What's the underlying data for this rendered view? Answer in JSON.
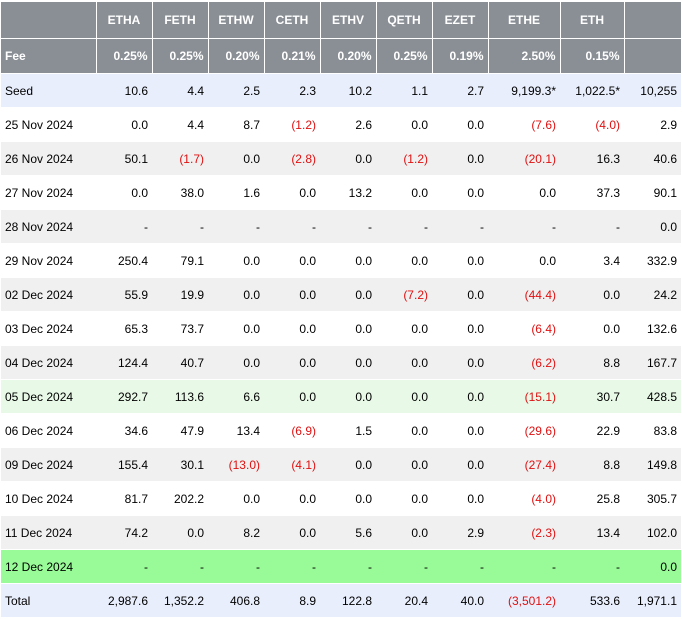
{
  "columns": [
    "",
    "ETHA",
    "FETH",
    "ETHW",
    "CETH",
    "ETHV",
    "QETH",
    "EZET",
    "ETHE",
    "ETH",
    ""
  ],
  "fee": [
    "Fee",
    "0.25%",
    "0.25%",
    "0.20%",
    "0.21%",
    "0.20%",
    "0.25%",
    "0.19%",
    "2.50%",
    "0.15%",
    ""
  ],
  "rows": [
    {
      "style": "seed",
      "cells": [
        "Seed",
        "10.6",
        "4.4",
        "2.5",
        "2.3",
        "10.2",
        "1.1",
        "2.7",
        "9,199.3*",
        "1,022.5*",
        "10,255"
      ]
    },
    {
      "style": "white",
      "cells": [
        "25 Nov 2024",
        "0.0",
        "4.4",
        "8.7",
        "(1.2)",
        "2.6",
        "0.0",
        "0.0",
        "(7.6)",
        "(4.0)",
        "2.9"
      ]
    },
    {
      "style": "grey",
      "cells": [
        "26 Nov 2024",
        "50.1",
        "(1.7)",
        "0.0",
        "(2.8)",
        "0.0",
        "(1.2)",
        "0.0",
        "(20.1)",
        "16.3",
        "40.6"
      ]
    },
    {
      "style": "white",
      "cells": [
        "27 Nov 2024",
        "0.0",
        "38.0",
        "1.6",
        "0.0",
        "13.2",
        "0.0",
        "0.0",
        "0.0",
        "37.3",
        "90.1"
      ]
    },
    {
      "style": "grey",
      "cells": [
        "28 Nov 2024",
        "-",
        "-",
        "-",
        "-",
        "-",
        "-",
        "-",
        "-",
        "-",
        "0.0"
      ]
    },
    {
      "style": "white",
      "cells": [
        "29 Nov 2024",
        "250.4",
        "79.1",
        "0.0",
        "0.0",
        "0.0",
        "0.0",
        "0.0",
        "0.0",
        "3.4",
        "332.9"
      ]
    },
    {
      "style": "grey",
      "cells": [
        "02 Dec 2024",
        "55.9",
        "19.9",
        "0.0",
        "0.0",
        "0.0",
        "(7.2)",
        "0.0",
        "(44.4)",
        "0.0",
        "24.2"
      ]
    },
    {
      "style": "white",
      "cells": [
        "03 Dec 2024",
        "65.3",
        "73.7",
        "0.0",
        "0.0",
        "0.0",
        "0.0",
        "0.0",
        "(6.4)",
        "0.0",
        "132.6"
      ]
    },
    {
      "style": "grey",
      "cells": [
        "04 Dec 2024",
        "124.4",
        "40.7",
        "0.0",
        "0.0",
        "0.0",
        "0.0",
        "0.0",
        "(6.2)",
        "8.8",
        "167.7"
      ]
    },
    {
      "style": "lightgreen",
      "cells": [
        "05 Dec 2024",
        "292.7",
        "113.6",
        "6.6",
        "0.0",
        "0.0",
        "0.0",
        "0.0",
        "(15.1)",
        "30.7",
        "428.5"
      ]
    },
    {
      "style": "white",
      "cells": [
        "06 Dec 2024",
        "34.6",
        "47.9",
        "13.4",
        "(6.9)",
        "1.5",
        "0.0",
        "0.0",
        "(29.6)",
        "22.9",
        "83.8"
      ]
    },
    {
      "style": "grey",
      "cells": [
        "09 Dec 2024",
        "155.4",
        "30.1",
        "(13.0)",
        "(4.1)",
        "0.0",
        "0.0",
        "0.0",
        "(27.4)",
        "8.8",
        "149.8"
      ]
    },
    {
      "style": "white",
      "cells": [
        "10 Dec 2024",
        "81.7",
        "202.2",
        "0.0",
        "0.0",
        "0.0",
        "0.0",
        "0.0",
        "(4.0)",
        "25.8",
        "305.7"
      ]
    },
    {
      "style": "grey",
      "cells": [
        "11 Dec 2024",
        "74.2",
        "0.0",
        "8.2",
        "0.0",
        "5.6",
        "0.0",
        "2.9",
        "(2.3)",
        "13.4",
        "102.0"
      ]
    },
    {
      "style": "green",
      "cells": [
        "12 Dec 2024",
        "-",
        "-",
        "-",
        "-",
        "-",
        "-",
        "-",
        "-",
        "-",
        "0.0"
      ]
    },
    {
      "style": "total",
      "cells": [
        "Total",
        "2,987.6",
        "1,352.2",
        "406.8",
        "8.9",
        "122.8",
        "20.4",
        "40.0",
        "(3,501.2)",
        "533.6",
        "1,971.1"
      ]
    }
  ]
}
